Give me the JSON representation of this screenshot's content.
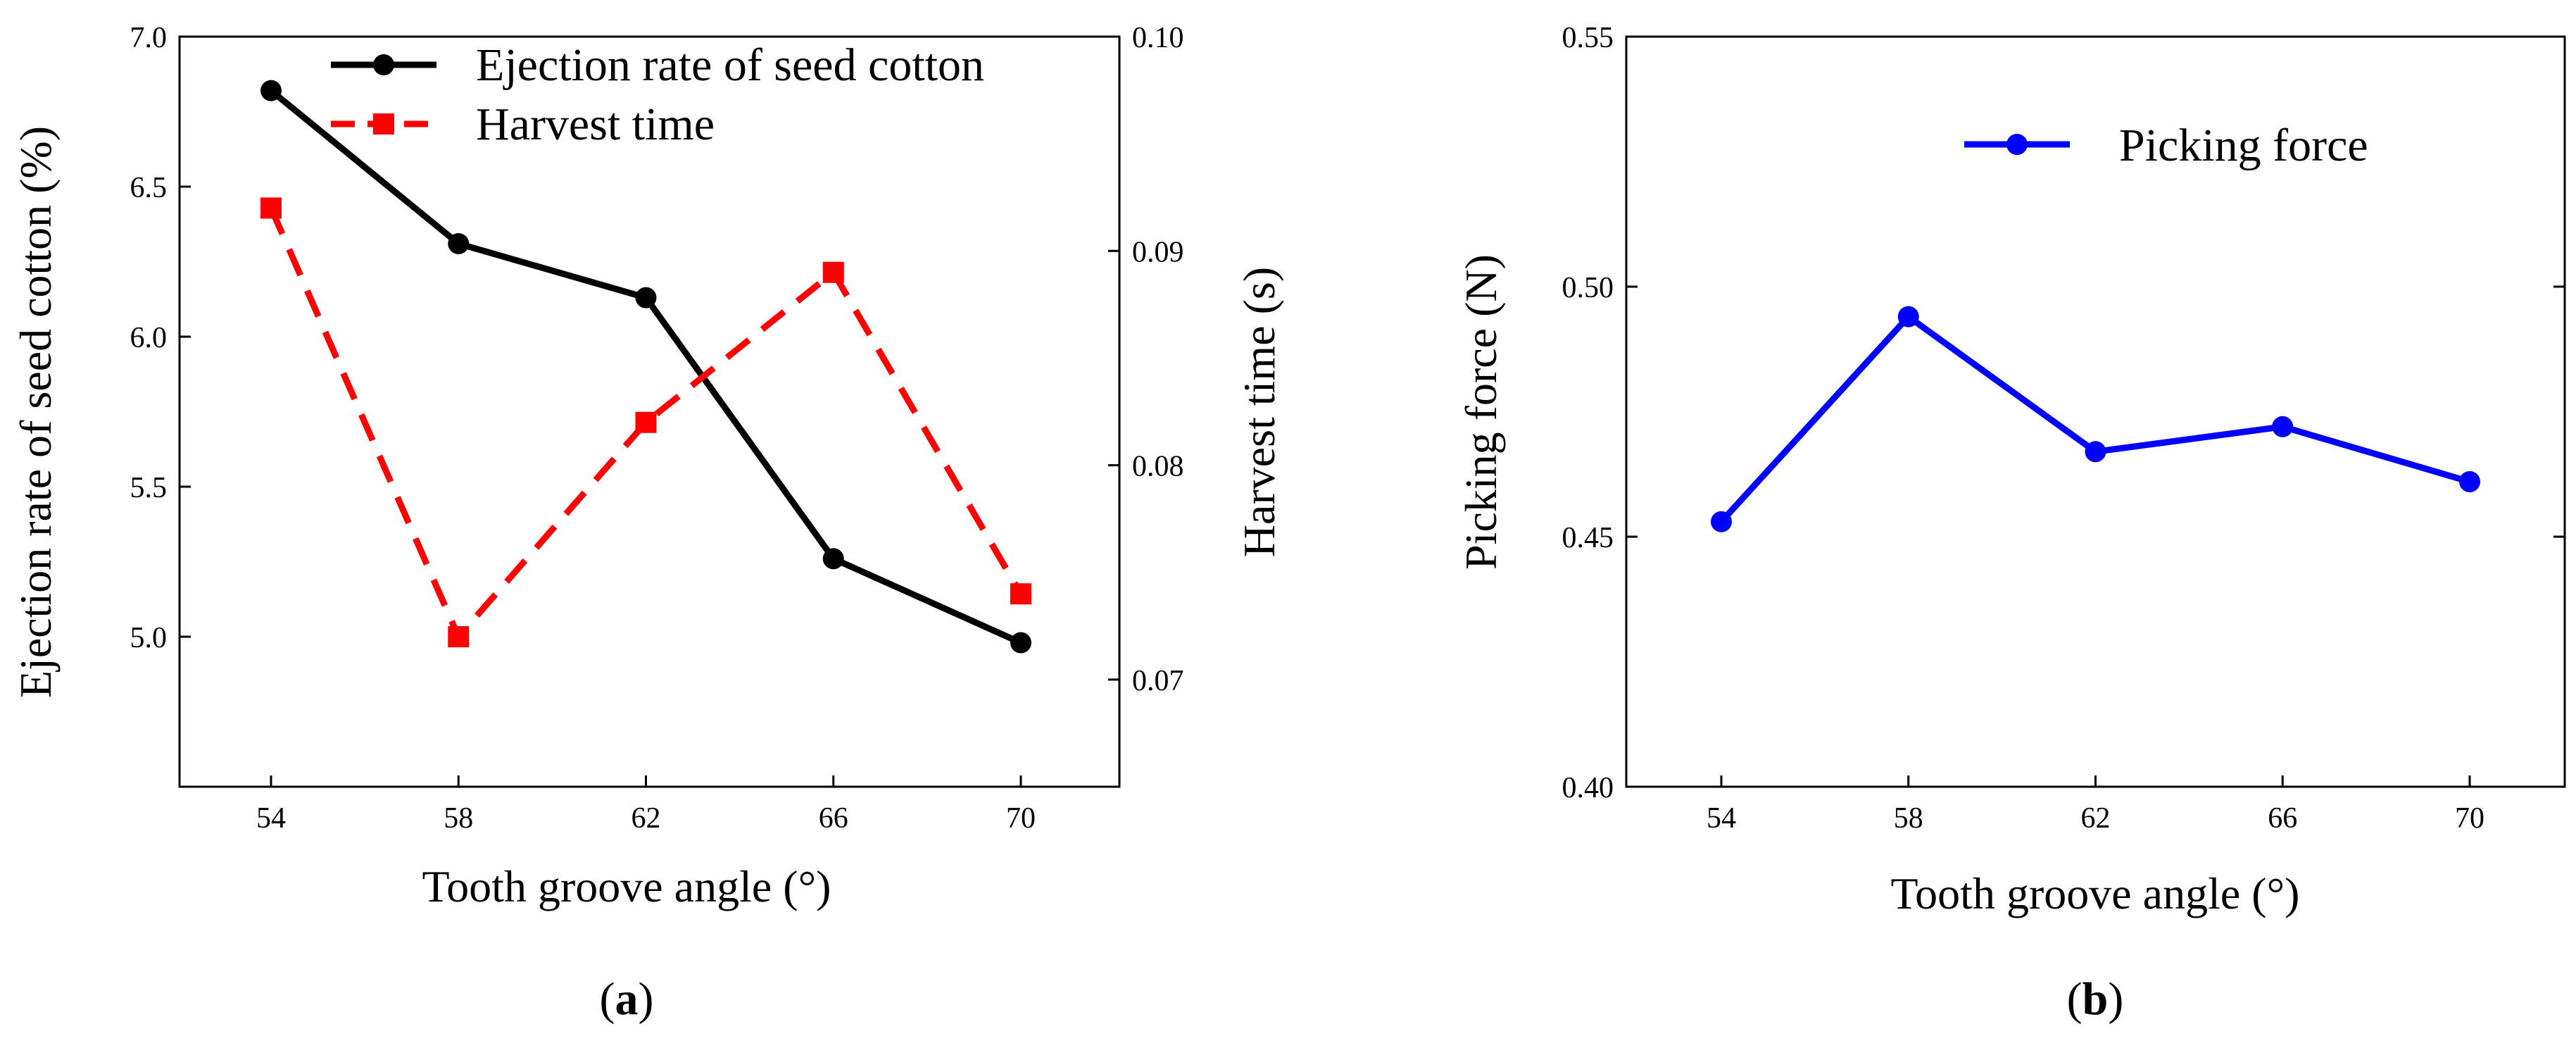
{
  "chart_data": [
    {
      "type": "line",
      "panel": "a",
      "caption_open": "(",
      "caption_label": "a",
      "caption_close": ")",
      "categories": [
        "54",
        "58",
        "62",
        "66",
        "70"
      ],
      "x": [
        54,
        58,
        62,
        66,
        70
      ],
      "xlabel": "Tooth groove angle (°)",
      "ylabel": "Ejection rate of seed cotton (%)",
      "ylim": [
        4.5,
        7.0
      ],
      "yticks": [
        5.0,
        5.5,
        6.0,
        6.5,
        7.0
      ],
      "ytick_labels": [
        "5.0",
        "5.5",
        "6.0",
        "6.5",
        "7.0"
      ],
      "y2label": "Harvest time (s)",
      "y2lim": [
        0.065,
        0.1
      ],
      "y2ticks": [
        0.07,
        0.08,
        0.09,
        0.1
      ],
      "y2tick_labels": [
        "0.07",
        "0.08",
        "0.09",
        "0.10"
      ],
      "legend_position": "top",
      "series": [
        {
          "name": "Ejection rate of seed cotton",
          "axis": "left",
          "color": "#000000",
          "marker": "circle",
          "line": "solid",
          "values": [
            6.82,
            6.31,
            6.13,
            5.26,
            4.98
          ]
        },
        {
          "name": "Harvest time",
          "axis": "right",
          "color": "#ff0000",
          "marker": "square",
          "line": "dashed",
          "values": [
            0.092,
            0.072,
            0.082,
            0.089,
            0.074
          ]
        }
      ]
    },
    {
      "type": "line",
      "panel": "b",
      "caption_open": "(",
      "caption_label": "b",
      "caption_close": ")",
      "categories": [
        "54",
        "58",
        "62",
        "66",
        "70"
      ],
      "x": [
        54,
        58,
        62,
        66,
        70
      ],
      "xlabel": "Tooth groove angle (°)",
      "ylabel": "Picking force (N)",
      "ylim": [
        0.4,
        0.55
      ],
      "yticks": [
        0.4,
        0.45,
        0.5,
        0.55
      ],
      "ytick_labels": [
        "0.40",
        "0.45",
        "0.50",
        "0.55"
      ],
      "legend_position": "top-right",
      "series": [
        {
          "name": "Picking force",
          "axis": "left",
          "color": "#0000ff",
          "marker": "circle",
          "line": "solid",
          "values": [
            0.453,
            0.494,
            0.467,
            0.472,
            0.461
          ]
        }
      ]
    }
  ]
}
